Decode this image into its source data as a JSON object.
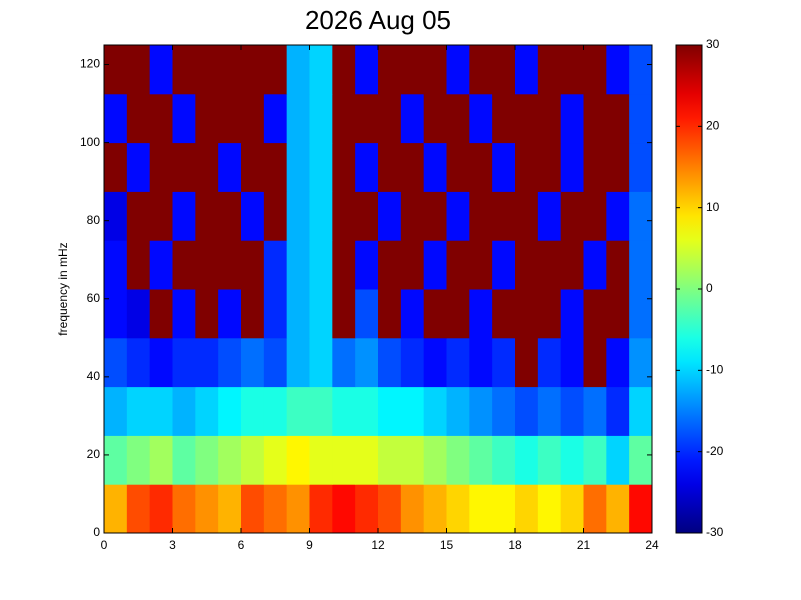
{
  "chart_data": {
    "type": "heatmap",
    "title": "2026 Aug 05",
    "ylabel": "frequency in mHz",
    "colormap": "jet",
    "x_edges": [
      0,
      1,
      2,
      3,
      4,
      5,
      6,
      7,
      8,
      9,
      10,
      11,
      12,
      13,
      14,
      15,
      16,
      17,
      18,
      19,
      20,
      21,
      22,
      23,
      24
    ],
    "y_edges": [
      0,
      12.5,
      25,
      37.5,
      50,
      62.5,
      75,
      87.5,
      100,
      112.5,
      125
    ],
    "values": [
      [
        12,
        18,
        20,
        16,
        14,
        12,
        18,
        16,
        14,
        20,
        22,
        20,
        18,
        14,
        12,
        10,
        8,
        8,
        10,
        8,
        10,
        16,
        12,
        22
      ],
      [
        -2,
        0,
        2,
        -2,
        0,
        2,
        4,
        6,
        8,
        6,
        6,
        6,
        4,
        4,
        2,
        0,
        -2,
        -4,
        -6,
        -4,
        -6,
        -4,
        -10,
        -2
      ],
      [
        -12,
        -10,
        -10,
        -12,
        -10,
        -8,
        -6,
        -6,
        -4,
        -4,
        -6,
        -6,
        -8,
        -8,
        -10,
        -12,
        -14,
        -16,
        -18,
        -16,
        -18,
        -16,
        -20,
        -10
      ],
      [
        -18,
        -20,
        -22,
        -20,
        -20,
        -18,
        -16,
        -18,
        -12,
        -10,
        -16,
        -14,
        -18,
        -20,
        -22,
        -20,
        -22,
        -20,
        30,
        -20,
        -22,
        30,
        -22,
        -14
      ],
      [
        -22,
        -24,
        30,
        -22,
        30,
        -22,
        30,
        -20,
        -12,
        -10,
        30,
        -18,
        30,
        -22,
        30,
        30,
        -22,
        30,
        30,
        30,
        -22,
        30,
        30,
        -16
      ],
      [
        -22,
        30,
        -22,
        30,
        30,
        30,
        30,
        -20,
        -12,
        -10,
        30,
        -22,
        30,
        30,
        -22,
        30,
        30,
        -22,
        30,
        30,
        30,
        -22,
        30,
        -16
      ],
      [
        -24,
        30,
        30,
        -22,
        30,
        30,
        -22,
        30,
        -12,
        -10,
        30,
        30,
        -22,
        30,
        30,
        -22,
        30,
        30,
        30,
        -22,
        30,
        30,
        -22,
        -16
      ],
      [
        30,
        -22,
        30,
        30,
        30,
        -22,
        30,
        30,
        -12,
        -10,
        30,
        -22,
        30,
        30,
        -22,
        30,
        30,
        -22,
        30,
        30,
        -22,
        30,
        30,
        -18
      ],
      [
        -22,
        30,
        30,
        -22,
        30,
        30,
        30,
        -22,
        -12,
        -10,
        30,
        30,
        30,
        -22,
        30,
        30,
        -22,
        30,
        30,
        30,
        -22,
        30,
        30,
        -18
      ],
      [
        30,
        30,
        -22,
        30,
        30,
        30,
        30,
        30,
        -12,
        -10,
        30,
        -22,
        30,
        30,
        30,
        -22,
        30,
        30,
        -22,
        30,
        30,
        30,
        -22,
        -18
      ]
    ],
    "xlim": [
      0,
      24
    ],
    "xticks": [
      0,
      3,
      6,
      9,
      12,
      15,
      18,
      21,
      24
    ],
    "ylim": [
      0,
      125
    ],
    "yticks": [
      0,
      20,
      40,
      60,
      80,
      100,
      120
    ],
    "clim": [
      -30,
      30
    ],
    "cticks": [
      -30,
      -20,
      -10,
      0,
      10,
      20,
      30
    ]
  }
}
